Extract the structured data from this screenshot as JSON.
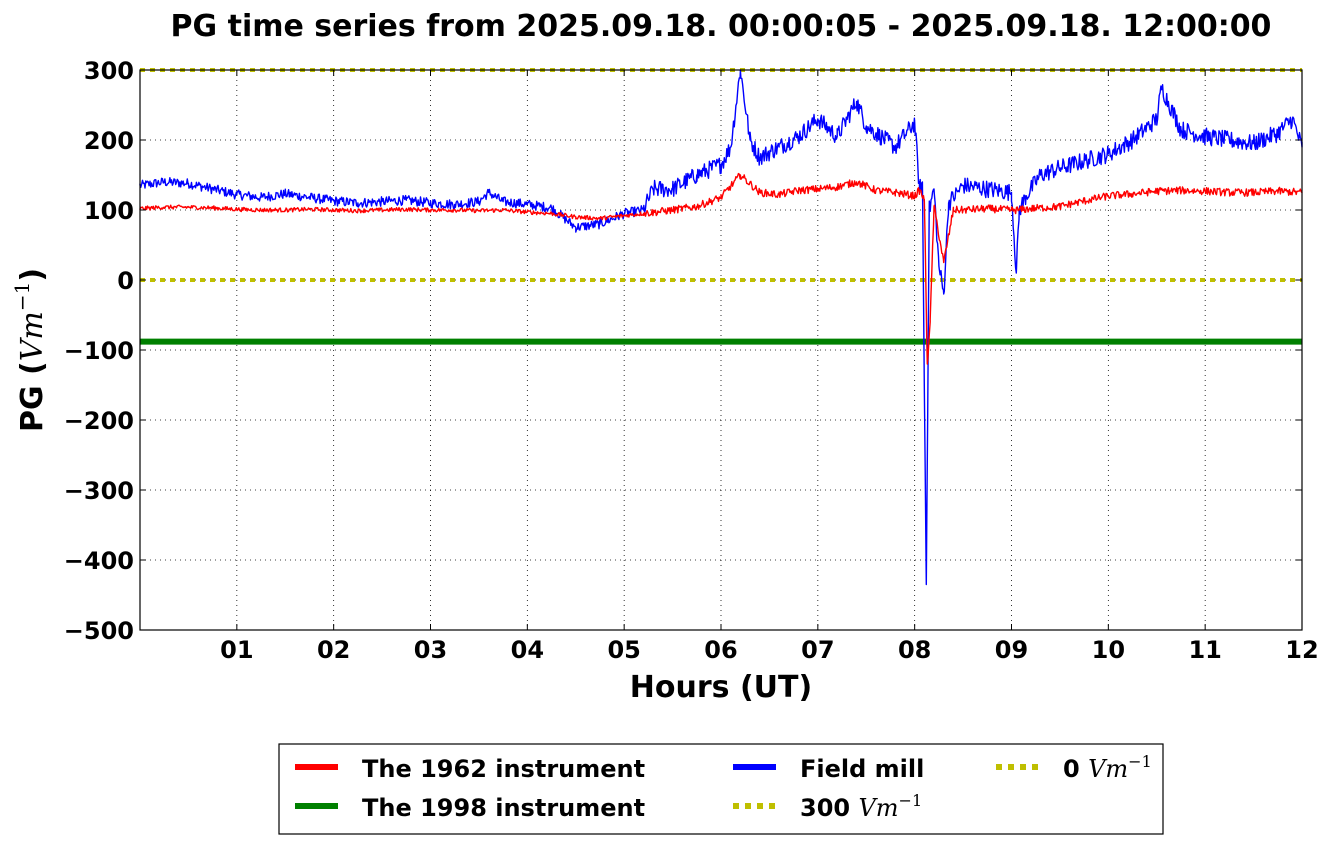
{
  "chart_data": {
    "type": "line",
    "title": "PG time series from 2025.09.18. 00:00:05 - 2025.09.18. 12:00:00",
    "xlabel": "Hours (UT)",
    "ylabel_text": "PG (",
    "ylabel_unit_base": "Vm",
    "ylabel_unit_exp": "−1",
    "ylabel_close": ")",
    "xlim": [
      0,
      12
    ],
    "ylim": [
      -500,
      300
    ],
    "x_ticks": [
      1,
      2,
      3,
      4,
      5,
      6,
      7,
      8,
      9,
      10,
      11,
      12
    ],
    "x_tick_labels": [
      "01",
      "02",
      "03",
      "04",
      "05",
      "06",
      "07",
      "08",
      "09",
      "10",
      "11",
      "12"
    ],
    "y_ticks": [
      -500,
      -400,
      -300,
      -200,
      -100,
      0,
      100,
      200,
      300
    ],
    "y_tick_labels": [
      "−500",
      "−400",
      "−300",
      "−200",
      "−100",
      "0",
      "100",
      "200",
      "300"
    ],
    "grid": true,
    "legend_position": "below",
    "legend": [
      {
        "label": "The 1962 instrument",
        "unit_base": "",
        "unit_exp": ""
      },
      {
        "label": "The 1998 instrument",
        "unit_base": "",
        "unit_exp": ""
      },
      {
        "label": "Field mill",
        "unit_base": "",
        "unit_exp": ""
      },
      {
        "label": "300 ",
        "unit_base": "Vm",
        "unit_exp": "−1"
      },
      {
        "label": "0 ",
        "unit_base": "Vm",
        "unit_exp": "−1"
      }
    ],
    "series": [
      {
        "name": "The 1962 instrument",
        "color": "#ff0000",
        "style": "solid",
        "x": [
          0,
          0.25,
          0.5,
          0.75,
          1,
          1.25,
          1.5,
          1.75,
          2,
          2.25,
          2.5,
          2.75,
          3,
          3.25,
          3.5,
          3.75,
          4,
          4.25,
          4.5,
          4.75,
          5,
          5.2,
          5.5,
          5.75,
          6,
          6.2,
          6.4,
          6.6,
          6.8,
          7,
          7.2,
          7.4,
          7.6,
          7.8,
          8,
          8.05,
          8.1,
          8.13,
          8.16,
          8.2,
          8.3,
          8.4,
          8.5,
          8.75,
          9,
          9.08,
          9.2,
          9.5,
          9.75,
          10,
          10.25,
          10.5,
          10.75,
          11,
          11.25,
          11.5,
          11.75,
          12
        ],
        "y": [
          102,
          104,
          104,
          103,
          101,
          100,
          100,
          101,
          100,
          99,
          100,
          101,
          100,
          100,
          99,
          100,
          97,
          95,
          90,
          88,
          92,
          95,
          100,
          105,
          118,
          150,
          125,
          122,
          128,
          130,
          133,
          140,
          128,
          125,
          120,
          128,
          115,
          -120,
          -60,
          105,
          25,
          100,
          100,
          102,
          100,
          100,
          102,
          105,
          113,
          120,
          123,
          127,
          128,
          127,
          125,
          125,
          127,
          125
        ]
      },
      {
        "name": "The 1998 instrument",
        "color": "#008000",
        "style": "solid",
        "x": [
          0,
          12
        ],
        "y": [
          -88,
          -88
        ]
      },
      {
        "name": "Field mill",
        "color": "#0000ff",
        "style": "solid",
        "x": [
          0,
          0.25,
          0.5,
          0.75,
          1,
          1.25,
          1.5,
          1.75,
          2,
          2.25,
          2.5,
          2.75,
          3,
          3.25,
          3.5,
          3.6,
          3.75,
          4,
          4.25,
          4.5,
          4.75,
          5,
          5.2,
          5.3,
          5.5,
          5.75,
          6,
          6.1,
          6.2,
          6.3,
          6.4,
          6.6,
          6.8,
          7,
          7.2,
          7.4,
          7.5,
          7.6,
          7.8,
          8,
          8.05,
          8.08,
          8.12,
          8.15,
          8.2,
          8.25,
          8.3,
          8.35,
          8.5,
          8.75,
          9,
          9.05,
          9.08,
          9.15,
          9.3,
          9.5,
          9.75,
          10,
          10.25,
          10.5,
          10.55,
          10.75,
          11,
          11.25,
          11.5,
          11.75,
          11.9,
          12
        ],
        "y": [
          135,
          140,
          138,
          130,
          122,
          118,
          123,
          118,
          113,
          110,
          112,
          114,
          110,
          108,
          112,
          125,
          112,
          108,
          103,
          75,
          80,
          95,
          100,
          130,
          130,
          150,
          165,
          190,
          300,
          200,
          175,
          190,
          205,
          230,
          205,
          255,
          220,
          210,
          190,
          225,
          130,
          140,
          -435,
          100,
          130,
          20,
          -20,
          110,
          135,
          130,
          125,
          10,
          100,
          120,
          150,
          160,
          170,
          180,
          200,
          230,
          275,
          215,
          205,
          200,
          195,
          210,
          230,
          190
        ]
      },
      {
        "name": "300 Vm−1",
        "color": "#bfbf00",
        "style": "dotted",
        "x": [
          0,
          12
        ],
        "y": [
          300,
          300
        ]
      },
      {
        "name": "0 Vm−1",
        "color": "#bfbf00",
        "style": "dotted",
        "x": [
          0,
          12
        ],
        "y": [
          0,
          0
        ]
      }
    ]
  }
}
